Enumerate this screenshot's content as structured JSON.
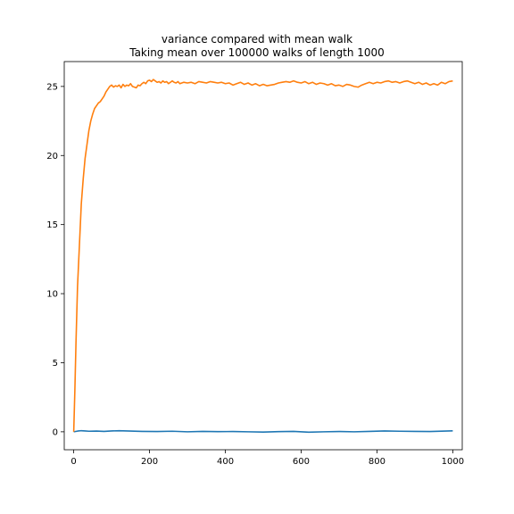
{
  "chart_data": {
    "type": "line",
    "title": [
      "variance compared with mean walk",
      "Taking mean over 100000 walks of length 1000"
    ],
    "xlabel": "",
    "ylabel": "",
    "xlim": [
      -25,
      1025
    ],
    "ylim": [
      -1.3,
      26.8
    ],
    "xticks": [
      0,
      200,
      400,
      600,
      800,
      1000
    ],
    "yticks": [
      0,
      5,
      10,
      15,
      20,
      25
    ],
    "grid": false,
    "legend": "none",
    "series": [
      {
        "color": "#1f77b4",
        "points": [
          [
            0,
            0.0
          ],
          [
            10,
            0.05
          ],
          [
            20,
            0.08
          ],
          [
            30,
            0.06
          ],
          [
            40,
            0.04
          ],
          [
            60,
            0.05
          ],
          [
            80,
            0.03
          ],
          [
            100,
            0.06
          ],
          [
            120,
            0.08
          ],
          [
            150,
            0.05
          ],
          [
            180,
            0.03
          ],
          [
            220,
            0.02
          ],
          [
            260,
            0.04
          ],
          [
            300,
            0.0
          ],
          [
            340,
            0.03
          ],
          [
            380,
            0.01
          ],
          [
            420,
            0.02
          ],
          [
            460,
            0.0
          ],
          [
            500,
            -0.02
          ],
          [
            540,
            0.01
          ],
          [
            580,
            0.03
          ],
          [
            620,
            -0.03
          ],
          [
            660,
            0.0
          ],
          [
            700,
            0.02
          ],
          [
            740,
            0.0
          ],
          [
            780,
            0.03
          ],
          [
            820,
            0.06
          ],
          [
            860,
            0.04
          ],
          [
            900,
            0.03
          ],
          [
            940,
            0.02
          ],
          [
            980,
            0.05
          ],
          [
            1000,
            0.07
          ]
        ]
      },
      {
        "color": "#ff7f0e",
        "points": [
          [
            0,
            0.0
          ],
          [
            3,
            3.0
          ],
          [
            6,
            6.5
          ],
          [
            10,
            10.5
          ],
          [
            15,
            13.5
          ],
          [
            20,
            16.5
          ],
          [
            25,
            18.3
          ],
          [
            30,
            19.8
          ],
          [
            35,
            20.8
          ],
          [
            40,
            21.8
          ],
          [
            45,
            22.5
          ],
          [
            50,
            23.0
          ],
          [
            55,
            23.4
          ],
          [
            60,
            23.6
          ],
          [
            65,
            23.8
          ],
          [
            70,
            23.9
          ],
          [
            75,
            24.1
          ],
          [
            80,
            24.3
          ],
          [
            85,
            24.6
          ],
          [
            90,
            24.8
          ],
          [
            95,
            25.0
          ],
          [
            100,
            25.1
          ],
          [
            105,
            24.95
          ],
          [
            110,
            25.05
          ],
          [
            115,
            25.0
          ],
          [
            120,
            25.1
          ],
          [
            125,
            24.9
          ],
          [
            130,
            25.15
          ],
          [
            135,
            25.0
          ],
          [
            140,
            25.1
          ],
          [
            145,
            25.05
          ],
          [
            150,
            25.2
          ],
          [
            155,
            25.0
          ],
          [
            160,
            24.95
          ],
          [
            165,
            24.9
          ],
          [
            170,
            25.1
          ],
          [
            175,
            25.05
          ],
          [
            180,
            25.2
          ],
          [
            185,
            25.3
          ],
          [
            190,
            25.2
          ],
          [
            195,
            25.4
          ],
          [
            200,
            25.45
          ],
          [
            205,
            25.35
          ],
          [
            210,
            25.5
          ],
          [
            215,
            25.4
          ],
          [
            220,
            25.3
          ],
          [
            225,
            25.35
          ],
          [
            230,
            25.25
          ],
          [
            235,
            25.4
          ],
          [
            240,
            25.3
          ],
          [
            245,
            25.35
          ],
          [
            250,
            25.2
          ],
          [
            255,
            25.3
          ],
          [
            260,
            25.4
          ],
          [
            265,
            25.3
          ],
          [
            270,
            25.25
          ],
          [
            275,
            25.35
          ],
          [
            280,
            25.2
          ],
          [
            290,
            25.3
          ],
          [
            300,
            25.25
          ],
          [
            310,
            25.3
          ],
          [
            320,
            25.2
          ],
          [
            330,
            25.35
          ],
          [
            340,
            25.3
          ],
          [
            350,
            25.25
          ],
          [
            360,
            25.35
          ],
          [
            370,
            25.3
          ],
          [
            380,
            25.25
          ],
          [
            390,
            25.3
          ],
          [
            400,
            25.2
          ],
          [
            410,
            25.25
          ],
          [
            420,
            25.1
          ],
          [
            430,
            25.2
          ],
          [
            440,
            25.3
          ],
          [
            450,
            25.15
          ],
          [
            460,
            25.25
          ],
          [
            470,
            25.1
          ],
          [
            480,
            25.2
          ],
          [
            490,
            25.05
          ],
          [
            500,
            25.15
          ],
          [
            510,
            25.05
          ],
          [
            520,
            25.1
          ],
          [
            530,
            25.15
          ],
          [
            540,
            25.25
          ],
          [
            550,
            25.3
          ],
          [
            560,
            25.35
          ],
          [
            570,
            25.3
          ],
          [
            580,
            25.4
          ],
          [
            590,
            25.3
          ],
          [
            600,
            25.25
          ],
          [
            610,
            25.35
          ],
          [
            620,
            25.2
          ],
          [
            630,
            25.3
          ],
          [
            640,
            25.15
          ],
          [
            650,
            25.25
          ],
          [
            660,
            25.2
          ],
          [
            670,
            25.1
          ],
          [
            680,
            25.2
          ],
          [
            690,
            25.05
          ],
          [
            700,
            25.1
          ],
          [
            710,
            25.0
          ],
          [
            720,
            25.15
          ],
          [
            730,
            25.1
          ],
          [
            740,
            25.0
          ],
          [
            750,
            24.95
          ],
          [
            760,
            25.1
          ],
          [
            770,
            25.2
          ],
          [
            780,
            25.3
          ],
          [
            790,
            25.2
          ],
          [
            800,
            25.3
          ],
          [
            810,
            25.25
          ],
          [
            820,
            25.35
          ],
          [
            830,
            25.4
          ],
          [
            840,
            25.3
          ],
          [
            850,
            25.35
          ],
          [
            860,
            25.25
          ],
          [
            870,
            25.35
          ],
          [
            880,
            25.4
          ],
          [
            890,
            25.3
          ],
          [
            900,
            25.2
          ],
          [
            910,
            25.3
          ],
          [
            920,
            25.15
          ],
          [
            930,
            25.25
          ],
          [
            940,
            25.1
          ],
          [
            950,
            25.2
          ],
          [
            960,
            25.1
          ],
          [
            970,
            25.3
          ],
          [
            980,
            25.2
          ],
          [
            990,
            25.35
          ],
          [
            1000,
            25.4
          ]
        ]
      }
    ]
  }
}
